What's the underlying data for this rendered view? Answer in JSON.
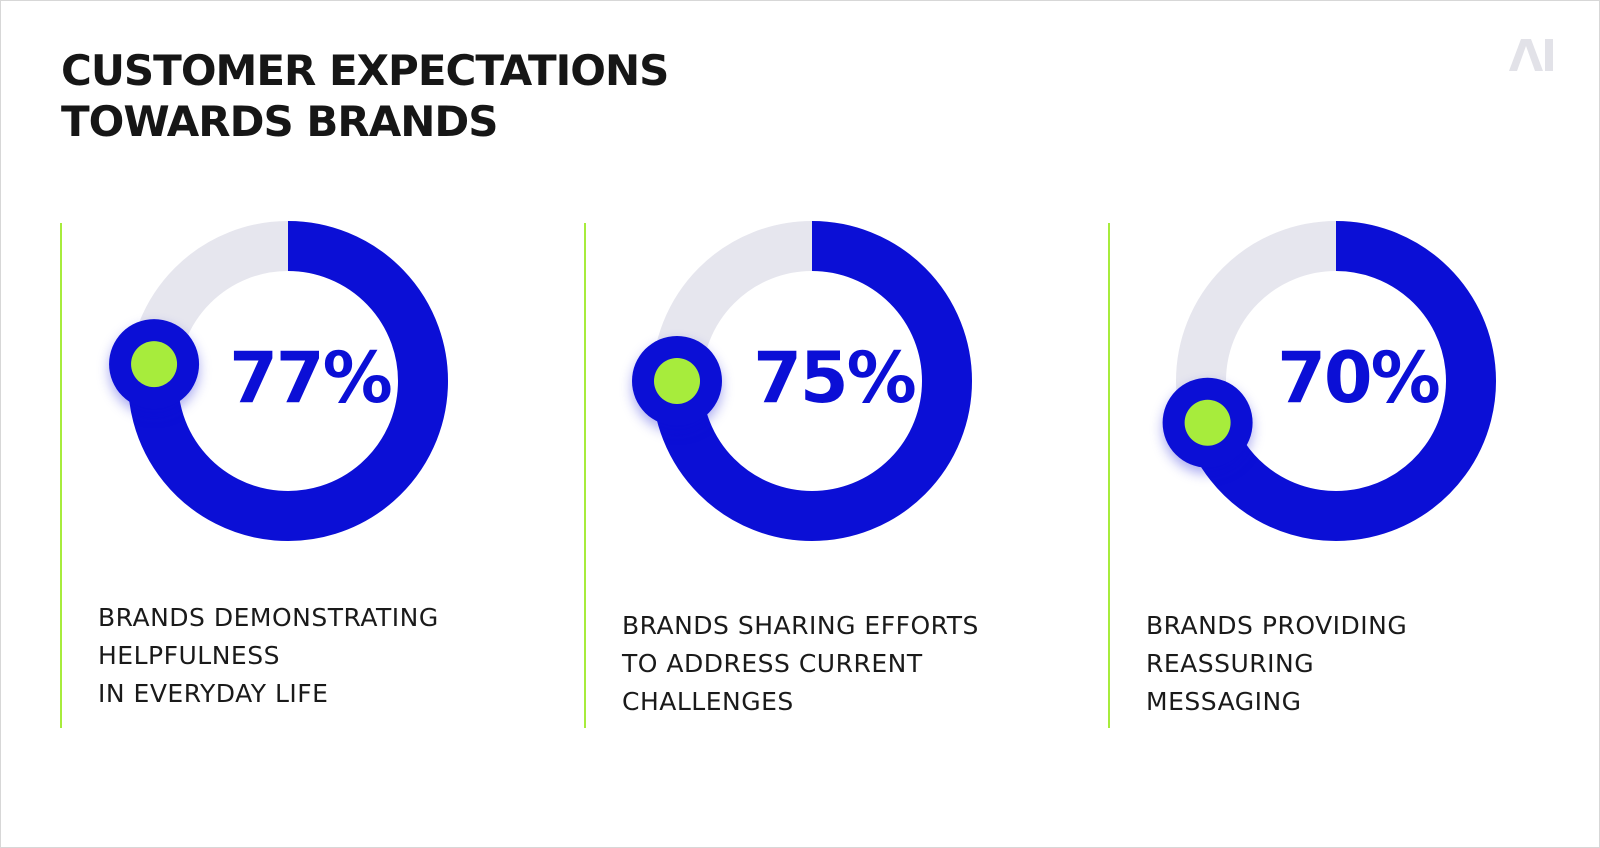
{
  "title": {
    "line1": "CUSTOMER EXPECTATIONS",
    "line2": "TOWARDS BRANDS"
  },
  "logo_text": "AI",
  "colors": {
    "accent_blue": "#0b0fd6",
    "track_grey": "#e6e6ee",
    "accent_green": "#a7ec3c",
    "divider_green": "#a7ec3c"
  },
  "chart_data": [
    {
      "type": "pie",
      "variant": "donut",
      "value": 77,
      "max": 100,
      "value_label": "77%",
      "label_lines": [
        "BRANDS DEMONSTRATING",
        "HELPFULNESS",
        "IN EVERYDAY LIFE"
      ]
    },
    {
      "type": "pie",
      "variant": "donut",
      "value": 75,
      "max": 100,
      "value_label": "75%",
      "label_lines": [
        "BRANDS SHARING EFFORTS",
        "TO ADDRESS CURRENT",
        "CHALLENGES"
      ]
    },
    {
      "type": "pie",
      "variant": "donut",
      "value": 70,
      "max": 100,
      "value_label": "70%",
      "label_lines": [
        "BRANDS PROVIDING",
        "REASSURING",
        "MESSAGING"
      ]
    }
  ]
}
